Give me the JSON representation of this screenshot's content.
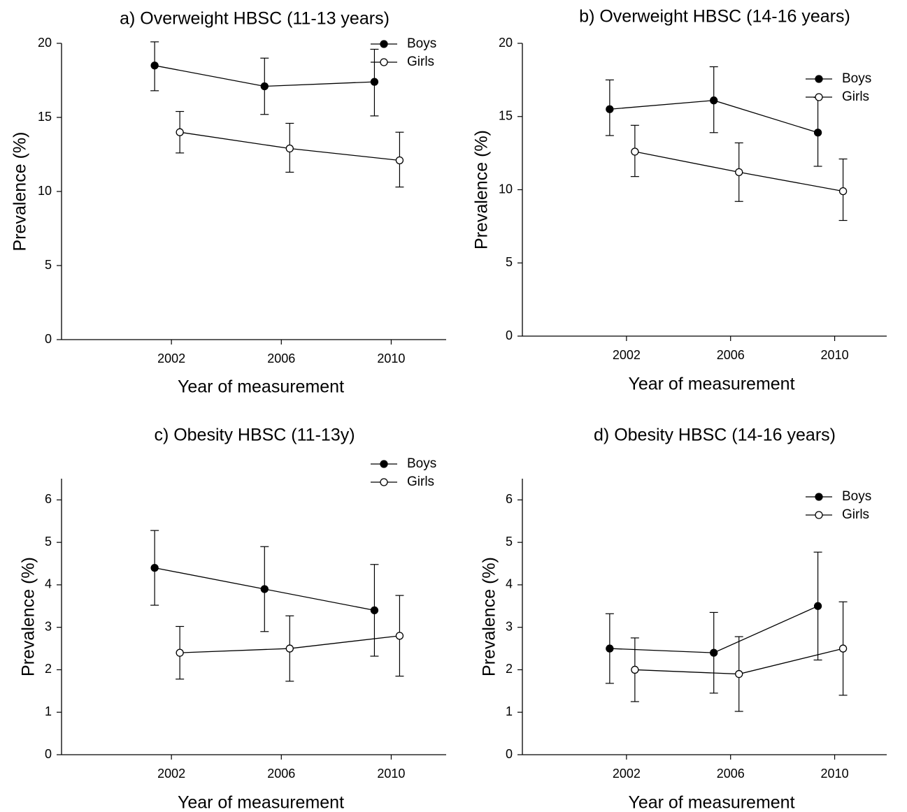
{
  "chart_data": [
    {
      "type": "line",
      "title": "a) Overweight HBSC (11-13 years)",
      "xlabel": "Year of measurement",
      "ylabel": "Prevalence (%)",
      "xticks": [
        "2002",
        "2006",
        "2010"
      ],
      "xlim": [
        1998,
        2012
      ],
      "ylim": [
        0,
        20
      ],
      "yticks": [
        "0",
        "5",
        "10",
        "15",
        "20"
      ],
      "error_bars": true,
      "legend_position": "top-right",
      "series": [
        {
          "name": "Boys",
          "marker": "filled-circle",
          "x": [
            2002,
            2006,
            2010
          ],
          "values": [
            18.5,
            17.1,
            17.4
          ],
          "err_low": [
            16.8,
            15.2,
            15.1
          ],
          "err_high": [
            20.1,
            19.0,
            19.6
          ]
        },
        {
          "name": "Girls",
          "marker": "open-circle",
          "x": [
            2002,
            2006,
            2010
          ],
          "values": [
            14.0,
            12.9,
            12.1
          ],
          "err_low": [
            12.6,
            11.3,
            10.3
          ],
          "err_high": [
            15.4,
            14.6,
            14.0
          ]
        }
      ]
    },
    {
      "type": "line",
      "title": "b) Overweight HBSC (14-16 years)",
      "xlabel": "Year of measurement",
      "ylabel": "Prevalence (%)",
      "xticks": [
        "2002",
        "2006",
        "2010"
      ],
      "xlim": [
        1998,
        2012
      ],
      "ylim": [
        0,
        20
      ],
      "yticks": [
        "0",
        "5",
        "10",
        "15",
        "20"
      ],
      "error_bars": true,
      "legend_position": "top-right",
      "series": [
        {
          "name": "Boys",
          "marker": "filled-circle",
          "x": [
            2002,
            2006,
            2010
          ],
          "values": [
            15.5,
            16.1,
            13.9
          ],
          "err_low": [
            13.7,
            13.9,
            11.6
          ],
          "err_high": [
            17.5,
            18.4,
            16.3
          ]
        },
        {
          "name": "Girls",
          "marker": "open-circle",
          "x": [
            2002,
            2006,
            2010
          ],
          "values": [
            12.6,
            11.2,
            9.9
          ],
          "err_low": [
            10.9,
            9.2,
            7.9
          ],
          "err_high": [
            14.4,
            13.2,
            12.1
          ]
        }
      ]
    },
    {
      "type": "line",
      "title": "c) Obesity HBSC (11-13y)",
      "xlabel": "Year of measurement",
      "ylabel": "Prevalence (%)",
      "xticks": [
        "2002",
        "2006",
        "2010"
      ],
      "xlim": [
        1998,
        2012
      ],
      "ylim": [
        0,
        6.5
      ],
      "yticks": [
        "0",
        "1",
        "2",
        "3",
        "4",
        "5",
        "6"
      ],
      "error_bars": true,
      "legend_position": "top-right",
      "series": [
        {
          "name": "Boys",
          "marker": "filled-circle",
          "x": [
            2002,
            2006,
            2010
          ],
          "values": [
            4.4,
            3.9,
            3.4
          ],
          "err_low": [
            3.52,
            2.9,
            2.32
          ],
          "err_high": [
            5.28,
            4.9,
            4.48
          ]
        },
        {
          "name": "Girls",
          "marker": "open-circle",
          "x": [
            2002,
            2006,
            2010
          ],
          "values": [
            2.4,
            2.5,
            2.8
          ],
          "err_low": [
            1.78,
            1.73,
            1.85
          ],
          "err_high": [
            3.02,
            3.27,
            3.75
          ]
        }
      ]
    },
    {
      "type": "line",
      "title": "d) Obesity HBSC (14-16 years)",
      "xlabel": "Year of measurement",
      "ylabel": "Prevalence (%)",
      "xticks": [
        "2002",
        "2006",
        "2010"
      ],
      "xlim": [
        1998,
        2012
      ],
      "ylim": [
        0,
        6.5
      ],
      "yticks": [
        "0",
        "1",
        "2",
        "3",
        "4",
        "5",
        "6"
      ],
      "error_bars": true,
      "legend_position": "top-right",
      "series": [
        {
          "name": "Boys",
          "marker": "filled-circle",
          "x": [
            2002,
            2006,
            2010
          ],
          "values": [
            2.5,
            2.4,
            3.5
          ],
          "err_low": [
            1.68,
            1.45,
            2.23
          ],
          "err_high": [
            3.32,
            3.35,
            4.77
          ]
        },
        {
          "name": "Girls",
          "marker": "open-circle",
          "x": [
            2002,
            2006,
            2010
          ],
          "values": [
            2.0,
            1.9,
            2.5
          ],
          "err_low": [
            1.25,
            1.02,
            1.4
          ],
          "err_high": [
            2.75,
            2.78,
            3.6
          ]
        }
      ]
    }
  ]
}
